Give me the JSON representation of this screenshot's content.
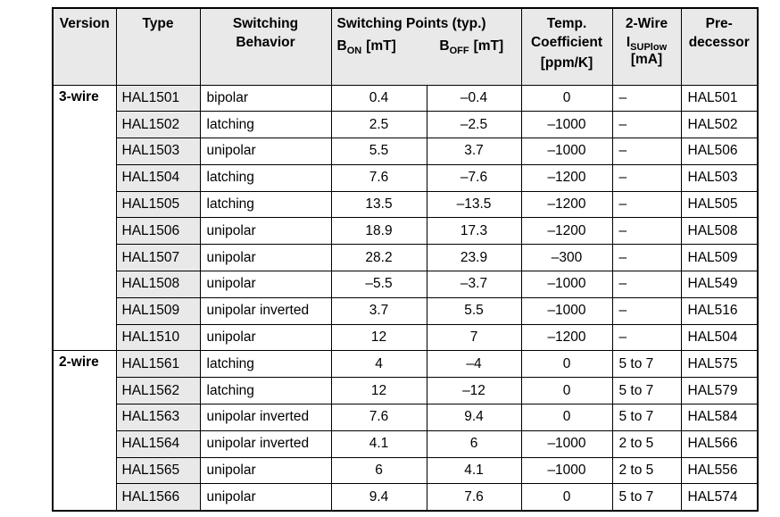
{
  "table": {
    "header": {
      "version": "Version",
      "type": "Type",
      "behavior_line1": "Switching",
      "behavior_line2": "Behavior",
      "points_title": "Switching Points (typ.)",
      "b_on_base": "B",
      "b_on_sub": "ON",
      "b_on_unit": "[mT]",
      "b_off_base": "B",
      "b_off_sub": "OFF",
      "b_off_unit": "[mT]",
      "temp_line1": "Temp.",
      "temp_line2": "Coefficient",
      "temp_unit": "[ppm/K]",
      "wire2_line1": "2-Wire",
      "isup_base": "I",
      "isup_sub": "SUPlow",
      "wire2_unit": "[mA]",
      "pre_line1": "Pre-",
      "pre_line2": "decessor"
    },
    "groups": [
      {
        "version": "3-wire",
        "rows": [
          {
            "type": "HAL1501",
            "behavior": "bipolar",
            "b_on": "0.4",
            "b_off": "–0.4",
            "temp_coeff": "0",
            "i_sup": "–",
            "predecessor": "HAL501"
          },
          {
            "type": "HAL1502",
            "behavior": "latching",
            "b_on": "2.5",
            "b_off": "–2.5",
            "temp_coeff": "–1000",
            "i_sup": "–",
            "predecessor": "HAL502"
          },
          {
            "type": "HAL1503",
            "behavior": "unipolar",
            "b_on": "5.5",
            "b_off": "3.7",
            "temp_coeff": "–1000",
            "i_sup": "–",
            "predecessor": "HAL506"
          },
          {
            "type": "HAL1504",
            "behavior": "latching",
            "b_on": "7.6",
            "b_off": "–7.6",
            "temp_coeff": "–1200",
            "i_sup": "–",
            "predecessor": "HAL503"
          },
          {
            "type": "HAL1505",
            "behavior": "latching",
            "b_on": "13.5",
            "b_off": "–13.5",
            "temp_coeff": "–1200",
            "i_sup": "–",
            "predecessor": "HAL505"
          },
          {
            "type": "HAL1506",
            "behavior": "unipolar",
            "b_on": "18.9",
            "b_off": "17.3",
            "temp_coeff": "–1200",
            "i_sup": "–",
            "predecessor": "HAL508"
          },
          {
            "type": "HAL1507",
            "behavior": "unipolar",
            "b_on": "28.2",
            "b_off": "23.9",
            "temp_coeff": "–300",
            "i_sup": "–",
            "predecessor": "HAL509"
          },
          {
            "type": "HAL1508",
            "behavior": "unipolar",
            "b_on": "–5.5",
            "b_off": "–3.7",
            "temp_coeff": "–1000",
            "i_sup": "–",
            "predecessor": "HAL549"
          },
          {
            "type": "HAL1509",
            "behavior": "unipolar inverted",
            "b_on": "3.7",
            "b_off": "5.5",
            "temp_coeff": "–1000",
            "i_sup": "–",
            "predecessor": "HAL516"
          },
          {
            "type": "HAL1510",
            "behavior": "unipolar",
            "b_on": "12",
            "b_off": "7",
            "temp_coeff": "–1200",
            "i_sup": "–",
            "predecessor": "HAL504"
          }
        ]
      },
      {
        "version": "2-wire",
        "rows": [
          {
            "type": "HAL1561",
            "behavior": "latching",
            "b_on": "4",
            "b_off": "–4",
            "temp_coeff": "0",
            "i_sup": "5 to 7",
            "predecessor": "HAL575"
          },
          {
            "type": "HAL1562",
            "behavior": "latching",
            "b_on": "12",
            "b_off": "–12",
            "temp_coeff": "0",
            "i_sup": "5 to 7",
            "predecessor": "HAL579"
          },
          {
            "type": "HAL1563",
            "behavior": "unipolar inverted",
            "b_on": "7.6",
            "b_off": "9.4",
            "temp_coeff": "0",
            "i_sup": "5 to 7",
            "predecessor": "HAL584"
          },
          {
            "type": "HAL1564",
            "behavior": "unipolar inverted",
            "b_on": "4.1",
            "b_off": "6",
            "temp_coeff": "–1000",
            "i_sup": "2 to 5",
            "predecessor": "HAL566"
          },
          {
            "type": "HAL1565",
            "behavior": "unipolar",
            "b_on": "6",
            "b_off": "4.1",
            "temp_coeff": "–1000",
            "i_sup": "2 to 5",
            "predecessor": "HAL556"
          },
          {
            "type": "HAL1566",
            "behavior": "unipolar",
            "b_on": "9.4",
            "b_off": "7.6",
            "temp_coeff": "0",
            "i_sup": "5 to 7",
            "predecessor": "HAL574"
          }
        ]
      }
    ]
  },
  "colors": {
    "header_bg": "#e9e9e9",
    "type_column_bg": "#e9e9e9",
    "border": "#000000",
    "page_bg": "#ffffff",
    "text": "#000000"
  }
}
